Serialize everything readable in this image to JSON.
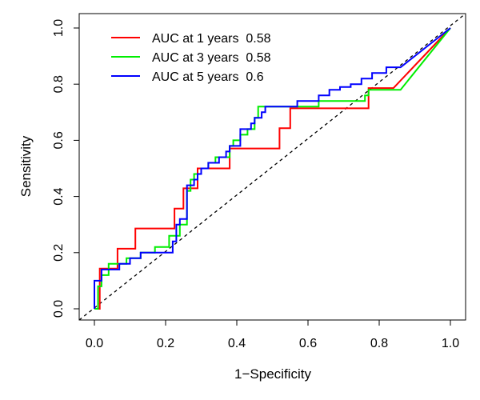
{
  "chart_data": {
    "type": "line",
    "title": "",
    "xlabel": "1−Specificity",
    "ylabel": "Sensitivity",
    "xlim": [
      0.0,
      1.0
    ],
    "ylim": [
      0.0,
      1.0
    ],
    "x_ticks": [
      "0.0",
      "0.2",
      "0.4",
      "0.6",
      "0.8",
      "1.0"
    ],
    "y_ticks": [
      "0.0",
      "0.2",
      "0.4",
      "0.6",
      "0.8",
      "1.0"
    ],
    "grid": false,
    "legend_position": "top-left",
    "reference_line": {
      "style": "dashed",
      "color": "#000000",
      "points": [
        [
          0,
          0
        ],
        [
          1,
          1
        ]
      ]
    },
    "series": [
      {
        "name": "AUC at 1 years  0.58",
        "color": "#FF0000",
        "points": [
          [
            0.0,
            0.0
          ],
          [
            0.015,
            0.0
          ],
          [
            0.015,
            0.143
          ],
          [
            0.065,
            0.143
          ],
          [
            0.065,
            0.214
          ],
          [
            0.115,
            0.214
          ],
          [
            0.115,
            0.286
          ],
          [
            0.225,
            0.286
          ],
          [
            0.225,
            0.357
          ],
          [
            0.25,
            0.357
          ],
          [
            0.25,
            0.429
          ],
          [
            0.29,
            0.429
          ],
          [
            0.29,
            0.5
          ],
          [
            0.38,
            0.5
          ],
          [
            0.38,
            0.571
          ],
          [
            0.52,
            0.571
          ],
          [
            0.52,
            0.643
          ],
          [
            0.55,
            0.643
          ],
          [
            0.55,
            0.714
          ],
          [
            0.77,
            0.714
          ],
          [
            0.77,
            0.786
          ],
          [
            0.84,
            0.786
          ],
          [
            1.0,
            1.0
          ]
        ]
      },
      {
        "name": "AUC at 3 years  0.58",
        "color": "#00EE00",
        "points": [
          [
            0.0,
            0.0
          ],
          [
            0.01,
            0.0
          ],
          [
            0.01,
            0.08
          ],
          [
            0.02,
            0.08
          ],
          [
            0.02,
            0.12
          ],
          [
            0.04,
            0.12
          ],
          [
            0.04,
            0.16
          ],
          [
            0.08,
            0.16
          ],
          [
            0.08,
            0.16
          ],
          [
            0.09,
            0.16
          ],
          [
            0.09,
            0.18
          ],
          [
            0.13,
            0.18
          ],
          [
            0.13,
            0.2
          ],
          [
            0.17,
            0.2
          ],
          [
            0.17,
            0.22
          ],
          [
            0.21,
            0.22
          ],
          [
            0.21,
            0.26
          ],
          [
            0.24,
            0.26
          ],
          [
            0.24,
            0.3
          ],
          [
            0.26,
            0.3
          ],
          [
            0.26,
            0.42
          ],
          [
            0.27,
            0.42
          ],
          [
            0.27,
            0.46
          ],
          [
            0.28,
            0.46
          ],
          [
            0.28,
            0.48
          ],
          [
            0.3,
            0.48
          ],
          [
            0.3,
            0.5
          ],
          [
            0.32,
            0.5
          ],
          [
            0.32,
            0.52
          ],
          [
            0.34,
            0.52
          ],
          [
            0.34,
            0.54
          ],
          [
            0.38,
            0.54
          ],
          [
            0.38,
            0.58
          ],
          [
            0.39,
            0.58
          ],
          [
            0.39,
            0.6
          ],
          [
            0.41,
            0.6
          ],
          [
            0.41,
            0.62
          ],
          [
            0.43,
            0.62
          ],
          [
            0.43,
            0.64
          ],
          [
            0.45,
            0.64
          ],
          [
            0.45,
            0.68
          ],
          [
            0.46,
            0.68
          ],
          [
            0.46,
            0.72
          ],
          [
            0.63,
            0.72
          ],
          [
            0.63,
            0.74
          ],
          [
            0.76,
            0.74
          ],
          [
            0.76,
            0.76
          ],
          [
            0.77,
            0.76
          ],
          [
            0.77,
            0.78
          ],
          [
            0.86,
            0.78
          ],
          [
            1.0,
            1.0
          ]
        ]
      },
      {
        "name": "AUC at 5 years  0.6",
        "color": "#0000FF",
        "points": [
          [
            0.0,
            0.0
          ],
          [
            0.0,
            0.1
          ],
          [
            0.02,
            0.1
          ],
          [
            0.02,
            0.14
          ],
          [
            0.07,
            0.14
          ],
          [
            0.07,
            0.16
          ],
          [
            0.1,
            0.16
          ],
          [
            0.1,
            0.18
          ],
          [
            0.13,
            0.18
          ],
          [
            0.13,
            0.2
          ],
          [
            0.22,
            0.2
          ],
          [
            0.22,
            0.24
          ],
          [
            0.23,
            0.24
          ],
          [
            0.23,
            0.3
          ],
          [
            0.24,
            0.3
          ],
          [
            0.24,
            0.32
          ],
          [
            0.26,
            0.32
          ],
          [
            0.26,
            0.44
          ],
          [
            0.28,
            0.44
          ],
          [
            0.28,
            0.46
          ],
          [
            0.29,
            0.46
          ],
          [
            0.29,
            0.48
          ],
          [
            0.3,
            0.48
          ],
          [
            0.3,
            0.5
          ],
          [
            0.32,
            0.5
          ],
          [
            0.32,
            0.52
          ],
          [
            0.35,
            0.52
          ],
          [
            0.35,
            0.54
          ],
          [
            0.37,
            0.54
          ],
          [
            0.37,
            0.56
          ],
          [
            0.38,
            0.56
          ],
          [
            0.38,
            0.58
          ],
          [
            0.41,
            0.58
          ],
          [
            0.41,
            0.64
          ],
          [
            0.44,
            0.64
          ],
          [
            0.44,
            0.66
          ],
          [
            0.45,
            0.66
          ],
          [
            0.45,
            0.68
          ],
          [
            0.47,
            0.68
          ],
          [
            0.47,
            0.7
          ],
          [
            0.48,
            0.7
          ],
          [
            0.48,
            0.72
          ],
          [
            0.57,
            0.72
          ],
          [
            0.57,
            0.74
          ],
          [
            0.63,
            0.74
          ],
          [
            0.63,
            0.76
          ],
          [
            0.66,
            0.76
          ],
          [
            0.66,
            0.78
          ],
          [
            0.69,
            0.78
          ],
          [
            0.69,
            0.79
          ],
          [
            0.72,
            0.79
          ],
          [
            0.72,
            0.8
          ],
          [
            0.75,
            0.8
          ],
          [
            0.75,
            0.82
          ],
          [
            0.78,
            0.82
          ],
          [
            0.78,
            0.84
          ],
          [
            0.82,
            0.84
          ],
          [
            0.82,
            0.86
          ],
          [
            0.86,
            0.86
          ],
          [
            1.0,
            1.0
          ]
        ]
      }
    ]
  }
}
